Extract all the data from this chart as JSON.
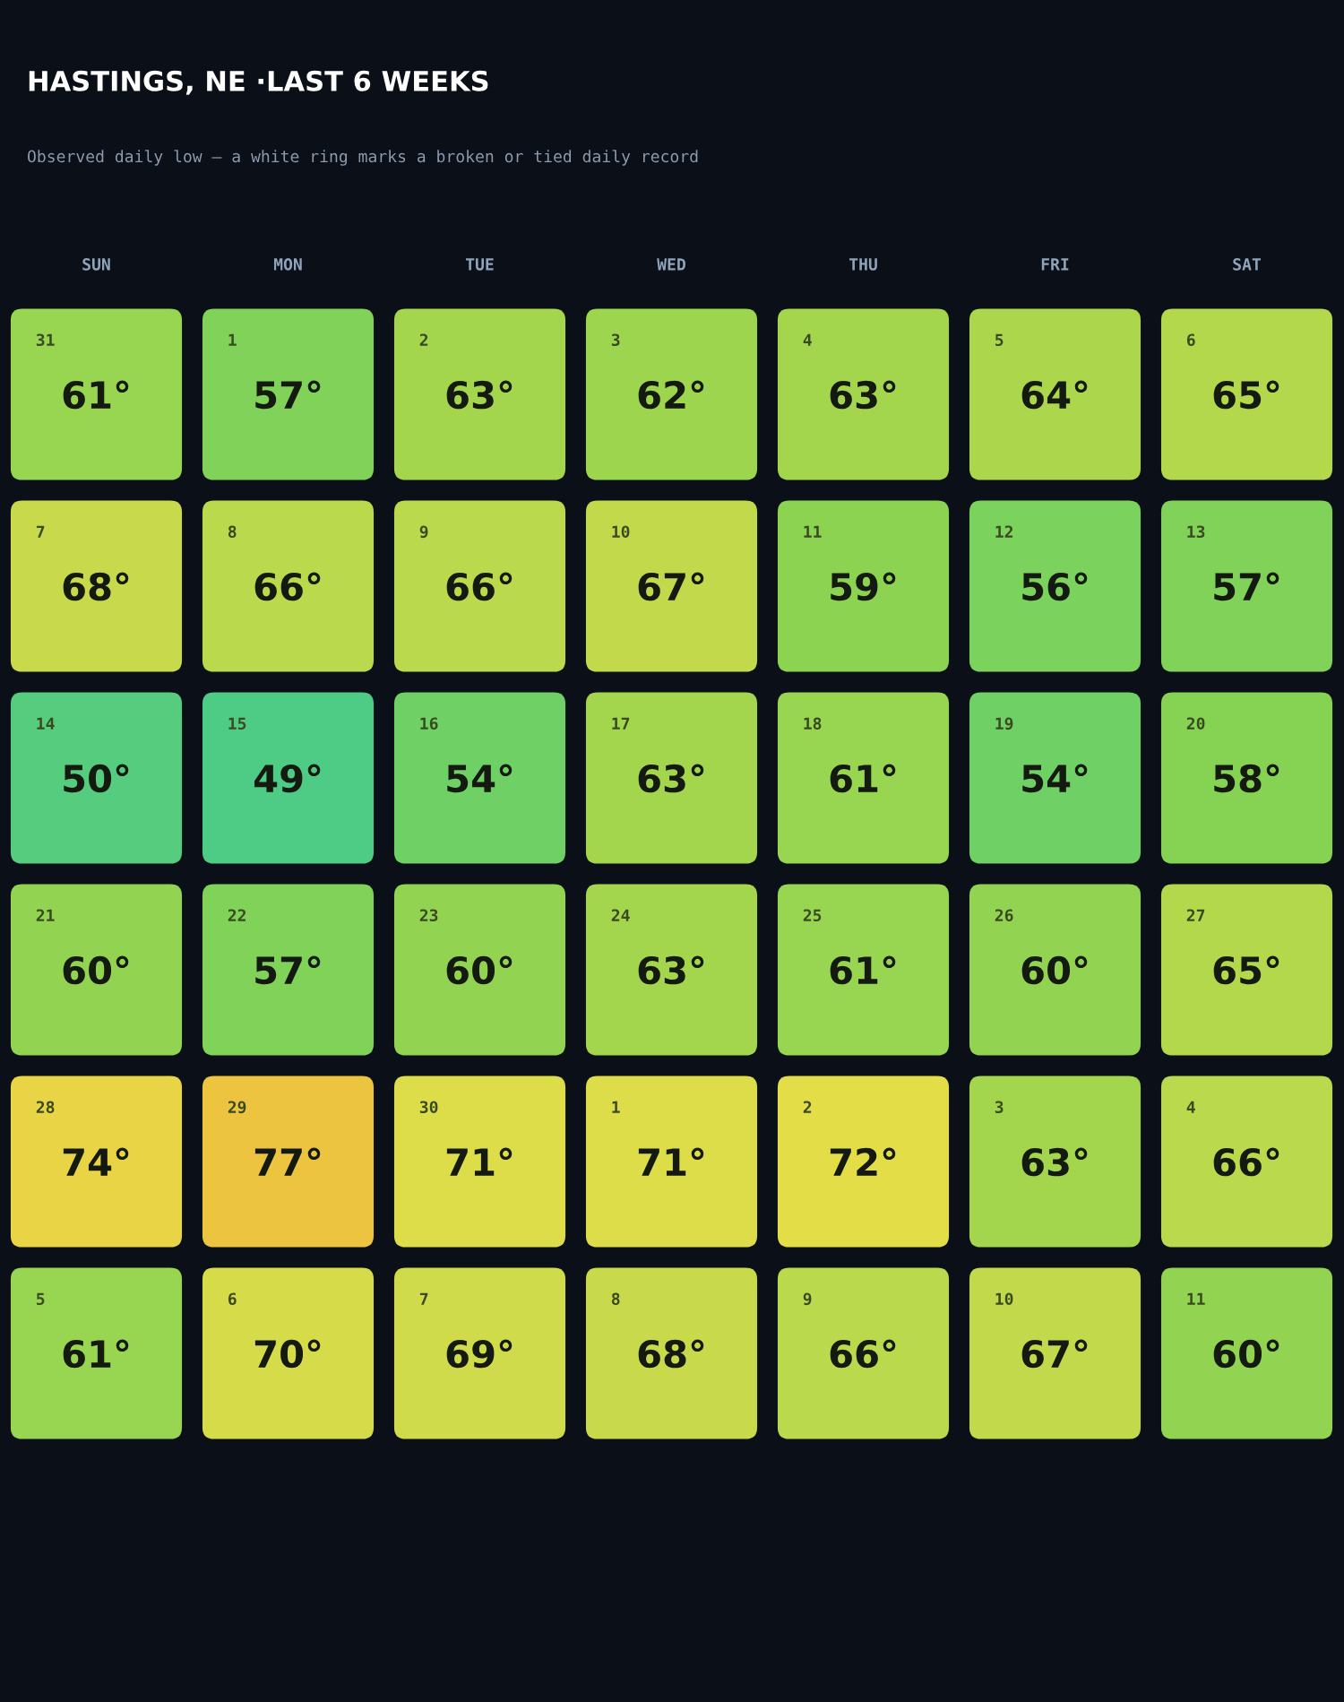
{
  "chart_data": {
    "type": "heatmap",
    "title": "HASTINGS, NE ·LAST 6 WEEKS",
    "subtitle": "Observed daily low — a white ring marks a broken or tied daily record",
    "categories": [
      "SUN",
      "MON",
      "TUE",
      "WED",
      "THU",
      "FRI",
      "SAT"
    ],
    "y_categories": [
      null,
      null,
      null,
      null,
      null,
      null
    ],
    "cells": [
      [
        61,
        57,
        63,
        62,
        63,
        64,
        65
      ],
      [
        68,
        66,
        66,
        67,
        59,
        56,
        57
      ],
      [
        50,
        49,
        54,
        63,
        61,
        54,
        58
      ],
      [
        60,
        57,
        60,
        63,
        61,
        60,
        65
      ],
      [
        74,
        77,
        71,
        71,
        72,
        63,
        66
      ],
      [
        61,
        70,
        69,
        68,
        66,
        67,
        60
      ]
    ],
    "cell_labels": [
      [
        "61°",
        "57°",
        "63°",
        "62°",
        "63°",
        "64°",
        "65°"
      ],
      [
        "68°",
        "66°",
        "66°",
        "67°",
        "59°",
        "56°",
        "57°"
      ],
      [
        "50°",
        "49°",
        "54°",
        "63°",
        "61°",
        "54°",
        "58°"
      ],
      [
        "60°",
        "57°",
        "60°",
        "63°",
        "61°",
        "60°",
        "65°"
      ],
      [
        "74°",
        "77°",
        "71°",
        "71°",
        "72°",
        "63°",
        "66°"
      ],
      [
        "61°",
        "70°",
        "69°",
        "68°",
        "66°",
        "67°",
        "60°"
      ]
    ],
    "annotations": [
      "31",
      "1",
      "2",
      "3",
      "4",
      "5",
      "6",
      "7",
      "8",
      "9",
      "10",
      "11",
      "12",
      "13",
      "14",
      "15",
      "16",
      "17",
      "18",
      "19",
      "20",
      "21",
      "22",
      "23",
      "24",
      "25",
      "26",
      "27",
      "28",
      "29",
      "30",
      "1",
      "2",
      "3",
      "4",
      "5",
      "6",
      "7",
      "8",
      "9",
      "10",
      "11"
    ]
  }
}
